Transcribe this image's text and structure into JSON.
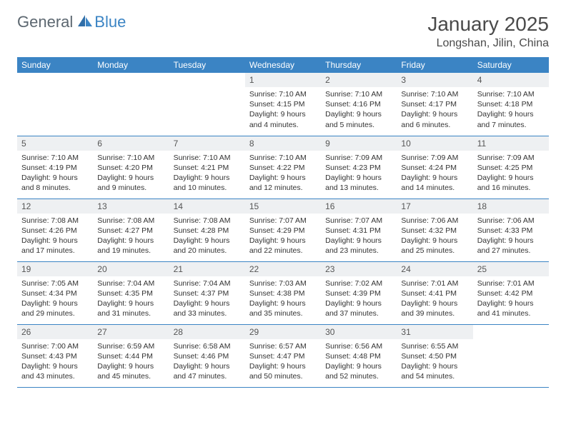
{
  "logo": {
    "text1": "General",
    "text2": "Blue"
  },
  "title": "January 2025",
  "location": "Longshan, Jilin, China",
  "colors": {
    "header_bg": "#3b84c4",
    "header_text": "#ffffff",
    "daynum_bg": "#eef0f2",
    "row_border": "#3b84c4",
    "title_color": "#4a4a4a",
    "logo_gray": "#5c6770",
    "logo_blue": "#3b84c4"
  },
  "day_headers": [
    "Sunday",
    "Monday",
    "Tuesday",
    "Wednesday",
    "Thursday",
    "Friday",
    "Saturday"
  ],
  "weeks": [
    [
      null,
      null,
      null,
      {
        "n": "1",
        "sunrise": "7:10 AM",
        "sunset": "4:15 PM",
        "daylight": "9 hours and 4 minutes."
      },
      {
        "n": "2",
        "sunrise": "7:10 AM",
        "sunset": "4:16 PM",
        "daylight": "9 hours and 5 minutes."
      },
      {
        "n": "3",
        "sunrise": "7:10 AM",
        "sunset": "4:17 PM",
        "daylight": "9 hours and 6 minutes."
      },
      {
        "n": "4",
        "sunrise": "7:10 AM",
        "sunset": "4:18 PM",
        "daylight": "9 hours and 7 minutes."
      }
    ],
    [
      {
        "n": "5",
        "sunrise": "7:10 AM",
        "sunset": "4:19 PM",
        "daylight": "9 hours and 8 minutes."
      },
      {
        "n": "6",
        "sunrise": "7:10 AM",
        "sunset": "4:20 PM",
        "daylight": "9 hours and 9 minutes."
      },
      {
        "n": "7",
        "sunrise": "7:10 AM",
        "sunset": "4:21 PM",
        "daylight": "9 hours and 10 minutes."
      },
      {
        "n": "8",
        "sunrise": "7:10 AM",
        "sunset": "4:22 PM",
        "daylight": "9 hours and 12 minutes."
      },
      {
        "n": "9",
        "sunrise": "7:09 AM",
        "sunset": "4:23 PM",
        "daylight": "9 hours and 13 minutes."
      },
      {
        "n": "10",
        "sunrise": "7:09 AM",
        "sunset": "4:24 PM",
        "daylight": "9 hours and 14 minutes."
      },
      {
        "n": "11",
        "sunrise": "7:09 AM",
        "sunset": "4:25 PM",
        "daylight": "9 hours and 16 minutes."
      }
    ],
    [
      {
        "n": "12",
        "sunrise": "7:08 AM",
        "sunset": "4:26 PM",
        "daylight": "9 hours and 17 minutes."
      },
      {
        "n": "13",
        "sunrise": "7:08 AM",
        "sunset": "4:27 PM",
        "daylight": "9 hours and 19 minutes."
      },
      {
        "n": "14",
        "sunrise": "7:08 AM",
        "sunset": "4:28 PM",
        "daylight": "9 hours and 20 minutes."
      },
      {
        "n": "15",
        "sunrise": "7:07 AM",
        "sunset": "4:29 PM",
        "daylight": "9 hours and 22 minutes."
      },
      {
        "n": "16",
        "sunrise": "7:07 AM",
        "sunset": "4:31 PM",
        "daylight": "9 hours and 23 minutes."
      },
      {
        "n": "17",
        "sunrise": "7:06 AM",
        "sunset": "4:32 PM",
        "daylight": "9 hours and 25 minutes."
      },
      {
        "n": "18",
        "sunrise": "7:06 AM",
        "sunset": "4:33 PM",
        "daylight": "9 hours and 27 minutes."
      }
    ],
    [
      {
        "n": "19",
        "sunrise": "7:05 AM",
        "sunset": "4:34 PM",
        "daylight": "9 hours and 29 minutes."
      },
      {
        "n": "20",
        "sunrise": "7:04 AM",
        "sunset": "4:35 PM",
        "daylight": "9 hours and 31 minutes."
      },
      {
        "n": "21",
        "sunrise": "7:04 AM",
        "sunset": "4:37 PM",
        "daylight": "9 hours and 33 minutes."
      },
      {
        "n": "22",
        "sunrise": "7:03 AM",
        "sunset": "4:38 PM",
        "daylight": "9 hours and 35 minutes."
      },
      {
        "n": "23",
        "sunrise": "7:02 AM",
        "sunset": "4:39 PM",
        "daylight": "9 hours and 37 minutes."
      },
      {
        "n": "24",
        "sunrise": "7:01 AM",
        "sunset": "4:41 PM",
        "daylight": "9 hours and 39 minutes."
      },
      {
        "n": "25",
        "sunrise": "7:01 AM",
        "sunset": "4:42 PM",
        "daylight": "9 hours and 41 minutes."
      }
    ],
    [
      {
        "n": "26",
        "sunrise": "7:00 AM",
        "sunset": "4:43 PM",
        "daylight": "9 hours and 43 minutes."
      },
      {
        "n": "27",
        "sunrise": "6:59 AM",
        "sunset": "4:44 PM",
        "daylight": "9 hours and 45 minutes."
      },
      {
        "n": "28",
        "sunrise": "6:58 AM",
        "sunset": "4:46 PM",
        "daylight": "9 hours and 47 minutes."
      },
      {
        "n": "29",
        "sunrise": "6:57 AM",
        "sunset": "4:47 PM",
        "daylight": "9 hours and 50 minutes."
      },
      {
        "n": "30",
        "sunrise": "6:56 AM",
        "sunset": "4:48 PM",
        "daylight": "9 hours and 52 minutes."
      },
      {
        "n": "31",
        "sunrise": "6:55 AM",
        "sunset": "4:50 PM",
        "daylight": "9 hours and 54 minutes."
      },
      null
    ]
  ],
  "labels": {
    "sunrise": "Sunrise:",
    "sunset": "Sunset:",
    "daylight": "Daylight:"
  }
}
